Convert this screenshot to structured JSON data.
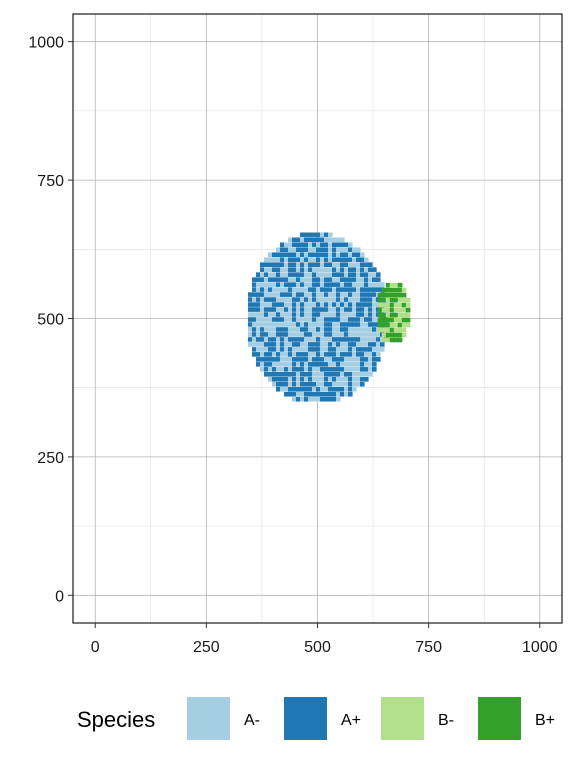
{
  "chart_data": {
    "type": "scatter",
    "title": "",
    "xlabel": "",
    "ylabel": "",
    "xlim": [
      -50,
      1050
    ],
    "ylim": [
      -50,
      1050
    ],
    "x_ticks": [
      0,
      250,
      500,
      750,
      1000
    ],
    "y_ticks": [
      0,
      250,
      500,
      750,
      1000
    ],
    "x_tick_labels": [
      "0",
      "250",
      "500",
      "750",
      "1000"
    ],
    "y_tick_labels": [
      "0",
      "250",
      "500",
      "750",
      "1000"
    ],
    "grid": true,
    "legend": {
      "title": "Species",
      "placement": "bottom",
      "entries": [
        {
          "label": "A-",
          "color": "#a6cee3"
        },
        {
          "label": "A+",
          "color": "#1f78b4"
        },
        {
          "label": "B-",
          "color": "#b2df8a"
        },
        {
          "label": "B+",
          "color": "#33a02c"
        }
      ]
    },
    "clusters": [
      {
        "species": [
          "A-",
          "A+"
        ],
        "center": [
          500,
          500
        ],
        "radius_x": 160,
        "radius_y": 155
      },
      {
        "species": [
          "B-",
          "B+"
        ],
        "center": [
          670,
          510
        ],
        "radius_x": 38,
        "radius_y": 58
      }
    ]
  }
}
